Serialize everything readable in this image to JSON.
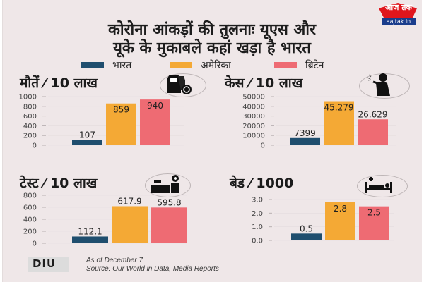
{
  "header": {
    "title_line1": "कोरोना आंकड़ों की तुलनाः यूएस और",
    "title_line2": "यूके के मुकाबले कहां खड़ा है भारत",
    "logo": {
      "name": "aajtak-logo",
      "text": "आज तक",
      "url": "aajtak.in"
    }
  },
  "legend": [
    {
      "label": "भारत",
      "color": "#1f4e6e"
    },
    {
      "label": "अमेरिका",
      "color": "#f4a935"
    },
    {
      "label": "ब्रिटेन",
      "color": "#ee6b73"
    }
  ],
  "panels": [
    {
      "title": "मौतें ⁄ 10 लाख",
      "icon": "coffin-virus-icon"
    },
    {
      "title": "केस ⁄ 10 लाख",
      "icon": "coughing-person-icon"
    },
    {
      "title": "टेस्ट ⁄ 10 लाख",
      "icon": "lab-test-icon"
    },
    {
      "title": "बेड ⁄ 1000",
      "icon": "hospital-bed-icon"
    }
  ],
  "chart_data": [
    {
      "type": "bar",
      "title": "मौतें ⁄ 10 लाख",
      "categories": [
        "भारत",
        "अमेरिका",
        "ब्रिटेन"
      ],
      "values": [
        107,
        859,
        940
      ],
      "value_labels": [
        "107",
        "859",
        "940"
      ],
      "ylim": [
        0,
        1000
      ],
      "yticks": [
        "0",
        "200",
        "400",
        "600",
        "800",
        "1000"
      ],
      "ytick_values": [
        0,
        200,
        400,
        600,
        800,
        1000
      ],
      "grid": true
    },
    {
      "type": "bar",
      "title": "केस ⁄ 10 लाख",
      "categories": [
        "भारत",
        "अमेरिका",
        "ब्रिटेन"
      ],
      "values": [
        7399,
        45279,
        26629
      ],
      "value_labels": [
        "7399",
        "45,279",
        "26,629"
      ],
      "ylim": [
        0,
        50000
      ],
      "yticks": [
        "0",
        "10000",
        "20000",
        "30000",
        "40000",
        "50000"
      ],
      "ytick_values": [
        0,
        10000,
        20000,
        30000,
        40000,
        50000
      ],
      "grid": true
    },
    {
      "type": "bar",
      "title": "टेस्ट ⁄ 10 लाख",
      "categories": [
        "भारत",
        "अमेरिका",
        "ब्रिटेन"
      ],
      "values": [
        112.1,
        617.9,
        595.8
      ],
      "value_labels": [
        "112.1",
        "617.9",
        "595.8"
      ],
      "ylim": [
        0,
        800
      ],
      "yticks": [
        "0",
        "200",
        "400",
        "600",
        "800"
      ],
      "ytick_values": [
        0,
        200,
        400,
        600,
        800
      ],
      "grid": true
    },
    {
      "type": "bar",
      "title": "बेड ⁄ 1000",
      "categories": [
        "भारत",
        "अमेरिका",
        "ब्रिटेन"
      ],
      "values": [
        0.5,
        2.8,
        2.5
      ],
      "value_labels": [
        "0.5",
        "2.8",
        "2.5"
      ],
      "ylim": [
        0,
        3
      ],
      "yticks": [
        "0.0",
        "1.0",
        "2.0",
        "3.0"
      ],
      "ytick_values": [
        0,
        1,
        2,
        3
      ],
      "grid": true
    }
  ],
  "footer": {
    "logo_text": "DIU",
    "as_of": "As of December 7",
    "source": "Source:  Our World in Data, Media Reports"
  }
}
